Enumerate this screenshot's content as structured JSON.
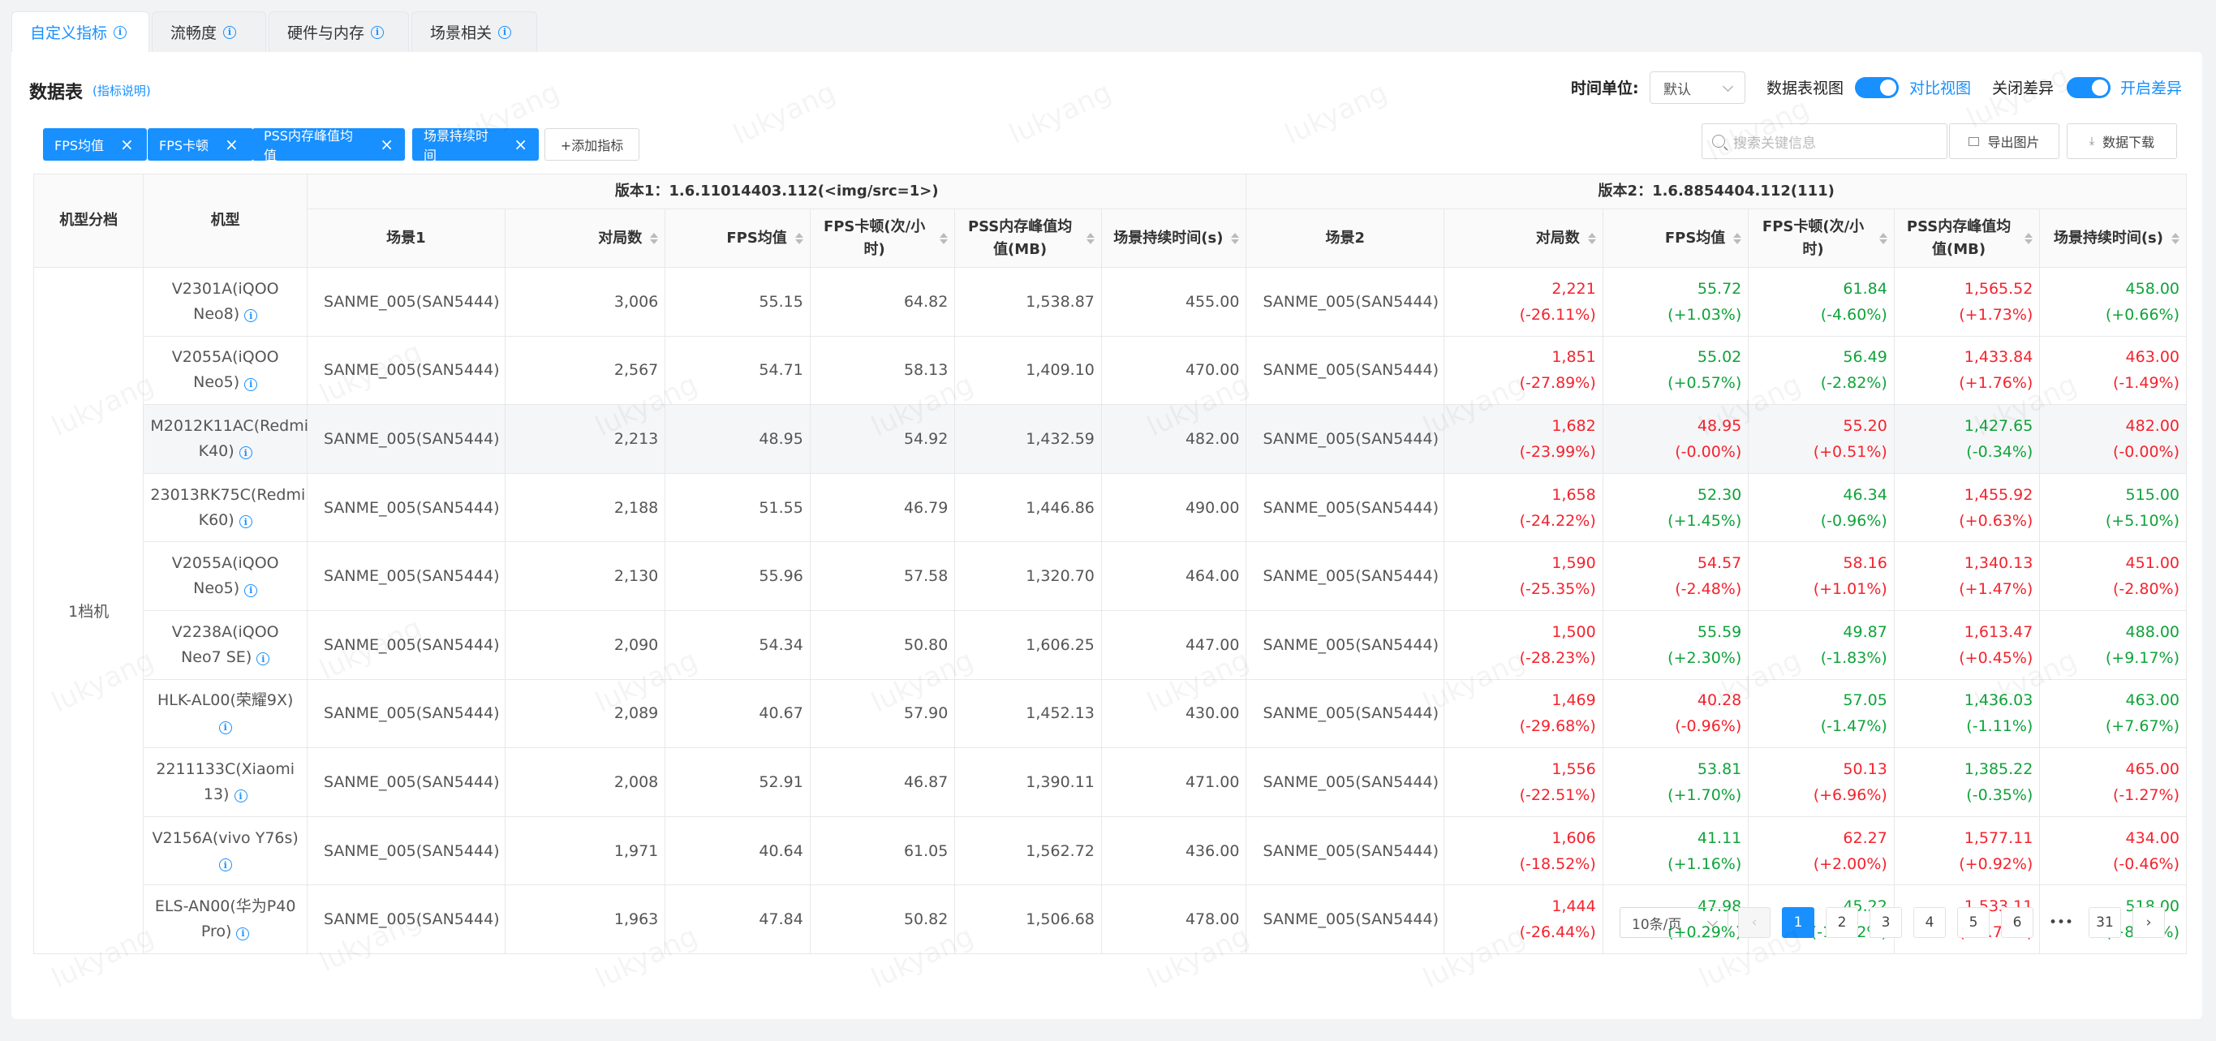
{
  "tabs": [
    {
      "label": "自定义指标",
      "active": true
    },
    {
      "label": "流畅度",
      "active": false
    },
    {
      "label": "硬件与内存",
      "active": false
    },
    {
      "label": "场景相关",
      "active": false
    }
  ],
  "panel": {
    "title": "数据表",
    "help_link": "(指标说明)",
    "time_unit_label": "时间单位:",
    "time_unit_value": "默认",
    "view_label": "数据表视图",
    "view_toggle_on": true,
    "view_link": "对比视图",
    "diff_label": "关闭差异",
    "diff_toggle_on": true,
    "diff_link": "开启差异"
  },
  "metric_chips": [
    "FPS均值",
    "FPS卡顿",
    "PSS内存峰值均值",
    "场景持续时间"
  ],
  "add_metric_label": "+添加指标",
  "search_placeholder": "搜索关键信息",
  "export_image_label": "导出图片",
  "download_label": "数据下载",
  "table": {
    "col_tier": "机型分档",
    "col_model": "机型",
    "version1": "版本1：1.6.11014403.112(<img/src=1>)",
    "version2": "版本2：1.6.8854404.112(111)",
    "v1_cols": [
      "场景1",
      "对局数",
      "FPS均值",
      "FPS卡顿(次/小时)",
      "PSS内存峰值均值(MB)",
      "场景持续时间(s)"
    ],
    "v2_cols": [
      "场景2",
      "对局数",
      "FPS均值",
      "FPS卡顿(次/小时)",
      "PSS内存峰值均值(MB)",
      "场景持续时间(s)"
    ],
    "tier": "1档机",
    "rows": [
      {
        "model": "V2301A(iQOO Neo8)",
        "scene1": "SANME_005(SAN5444)",
        "games1": "3,006",
        "fps1": "55.15",
        "jank1": "64.82",
        "pss1": "1,538.87",
        "dur1": "455.00",
        "scene2": "SANME_005(SAN5444)",
        "games2": "2,221",
        "games2_diff": "(-26.11%)",
        "games2_c": "red",
        "fps2": "55.72",
        "fps2_diff": "(+1.03%)",
        "fps2_c": "green",
        "jank2": "61.84",
        "jank2_diff": "(-4.60%)",
        "jank2_c": "green",
        "pss2": "1,565.52",
        "pss2_diff": "(+1.73%)",
        "pss2_c": "red",
        "dur2": "458.00",
        "dur2_diff": "(+0.66%)",
        "dur2_c": "green"
      },
      {
        "model": "V2055A(iQOO Neo5)",
        "scene1": "SANME_005(SAN5444)",
        "games1": "2,567",
        "fps1": "54.71",
        "jank1": "58.13",
        "pss1": "1,409.10",
        "dur1": "470.00",
        "scene2": "SANME_005(SAN5444)",
        "games2": "1,851",
        "games2_diff": "(-27.89%)",
        "games2_c": "red",
        "fps2": "55.02",
        "fps2_diff": "(+0.57%)",
        "fps2_c": "green",
        "jank2": "56.49",
        "jank2_diff": "(-2.82%)",
        "jank2_c": "green",
        "pss2": "1,433.84",
        "pss2_diff": "(+1.76%)",
        "pss2_c": "red",
        "dur2": "463.00",
        "dur2_diff": "(-1.49%)",
        "dur2_c": "red"
      },
      {
        "model": "M2012K11AC(Redmi K40)",
        "scene1": "SANME_005(SAN5444)",
        "games1": "2,213",
        "fps1": "48.95",
        "jank1": "54.92",
        "pss1": "1,432.59",
        "dur1": "482.00",
        "scene2": "SANME_005(SAN5444)",
        "games2": "1,682",
        "games2_diff": "(-23.99%)",
        "games2_c": "red",
        "fps2": "48.95",
        "fps2_diff": "(-0.00%)",
        "fps2_c": "red",
        "jank2": "55.20",
        "jank2_diff": "(+0.51%)",
        "jank2_c": "red",
        "pss2": "1,427.65",
        "pss2_diff": "(-0.34%)",
        "pss2_c": "green",
        "dur2": "482.00",
        "dur2_diff": "(-0.00%)",
        "dur2_c": "red"
      },
      {
        "model": "23013RK75C(Redmi K60)",
        "scene1": "SANME_005(SAN5444)",
        "games1": "2,188",
        "fps1": "51.55",
        "jank1": "46.79",
        "pss1": "1,446.86",
        "dur1": "490.00",
        "scene2": "SANME_005(SAN5444)",
        "games2": "1,658",
        "games2_diff": "(-24.22%)",
        "games2_c": "red",
        "fps2": "52.30",
        "fps2_diff": "(+1.45%)",
        "fps2_c": "green",
        "jank2": "46.34",
        "jank2_diff": "(-0.96%)",
        "jank2_c": "green",
        "pss2": "1,455.92",
        "pss2_diff": "(+0.63%)",
        "pss2_c": "red",
        "dur2": "515.00",
        "dur2_diff": "(+5.10%)",
        "dur2_c": "green"
      },
      {
        "model": "V2055A(iQOO Neo5)",
        "scene1": "SANME_005(SAN5444)",
        "games1": "2,130",
        "fps1": "55.96",
        "jank1": "57.58",
        "pss1": "1,320.70",
        "dur1": "464.00",
        "scene2": "SANME_005(SAN5444)",
        "games2": "1,590",
        "games2_diff": "(-25.35%)",
        "games2_c": "red",
        "fps2": "54.57",
        "fps2_diff": "(-2.48%)",
        "fps2_c": "red",
        "jank2": "58.16",
        "jank2_diff": "(+1.01%)",
        "jank2_c": "red",
        "pss2": "1,340.13",
        "pss2_diff": "(+1.47%)",
        "pss2_c": "red",
        "dur2": "451.00",
        "dur2_diff": "(-2.80%)",
        "dur2_c": "red"
      },
      {
        "model": "V2238A(iQOO Neo7 SE)",
        "scene1": "SANME_005(SAN5444)",
        "games1": "2,090",
        "fps1": "54.34",
        "jank1": "50.80",
        "pss1": "1,606.25",
        "dur1": "447.00",
        "scene2": "SANME_005(SAN5444)",
        "games2": "1,500",
        "games2_diff": "(-28.23%)",
        "games2_c": "red",
        "fps2": "55.59",
        "fps2_diff": "(+2.30%)",
        "fps2_c": "green",
        "jank2": "49.87",
        "jank2_diff": "(-1.83%)",
        "jank2_c": "green",
        "pss2": "1,613.47",
        "pss2_diff": "(+0.45%)",
        "pss2_c": "red",
        "dur2": "488.00",
        "dur2_diff": "(+9.17%)",
        "dur2_c": "green"
      },
      {
        "model": "HLK-AL00(荣耀9X)",
        "scene1": "SANME_005(SAN5444)",
        "games1": "2,089",
        "fps1": "40.67",
        "jank1": "57.90",
        "pss1": "1,452.13",
        "dur1": "430.00",
        "scene2": "SANME_005(SAN5444)",
        "games2": "1,469",
        "games2_diff": "(-29.68%)",
        "games2_c": "red",
        "fps2": "40.28",
        "fps2_diff": "(-0.96%)",
        "fps2_c": "red",
        "jank2": "57.05",
        "jank2_diff": "(-1.47%)",
        "jank2_c": "green",
        "pss2": "1,436.03",
        "pss2_diff": "(-1.11%)",
        "pss2_c": "green",
        "dur2": "463.00",
        "dur2_diff": "(+7.67%)",
        "dur2_c": "green"
      },
      {
        "model": "2211133C(Xiaomi 13)",
        "scene1": "SANME_005(SAN5444)",
        "games1": "2,008",
        "fps1": "52.91",
        "jank1": "46.87",
        "pss1": "1,390.11",
        "dur1": "471.00",
        "scene2": "SANME_005(SAN5444)",
        "games2": "1,556",
        "games2_diff": "(-22.51%)",
        "games2_c": "red",
        "fps2": "53.81",
        "fps2_diff": "(+1.70%)",
        "fps2_c": "green",
        "jank2": "50.13",
        "jank2_diff": "(+6.96%)",
        "jank2_c": "red",
        "pss2": "1,385.22",
        "pss2_diff": "(-0.35%)",
        "pss2_c": "green",
        "dur2": "465.00",
        "dur2_diff": "(-1.27%)",
        "dur2_c": "red"
      },
      {
        "model": "V2156A(vivo Y76s)",
        "scene1": "SANME_005(SAN5444)",
        "games1": "1,971",
        "fps1": "40.64",
        "jank1": "61.05",
        "pss1": "1,562.72",
        "dur1": "436.00",
        "scene2": "SANME_005(SAN5444)",
        "games2": "1,606",
        "games2_diff": "(-18.52%)",
        "games2_c": "red",
        "fps2": "41.11",
        "fps2_diff": "(+1.16%)",
        "fps2_c": "green",
        "jank2": "62.27",
        "jank2_diff": "(+2.00%)",
        "jank2_c": "red",
        "pss2": "1,577.11",
        "pss2_diff": "(+0.92%)",
        "pss2_c": "red",
        "dur2": "434.00",
        "dur2_diff": "(-0.46%)",
        "dur2_c": "red"
      },
      {
        "model": "ELS-AN00(华为P40 Pro)",
        "scene1": "SANME_005(SAN5444)",
        "games1": "1,963",
        "fps1": "47.84",
        "jank1": "50.82",
        "pss1": "1,506.68",
        "dur1": "478.00",
        "scene2": "SANME_005(SAN5444)",
        "games2": "1,444",
        "games2_diff": "(-26.44%)",
        "games2_c": "red",
        "fps2": "47.98",
        "fps2_diff": "(+0.29%)",
        "fps2_c": "green",
        "jank2": "45.22",
        "jank2_diff": "(-11.02%)",
        "jank2_c": "green",
        "pss2": "1,533.11",
        "pss2_diff": "(+1.75%)",
        "pss2_c": "red",
        "dur2": "518.00",
        "dur2_diff": "(+8.37%)",
        "dur2_c": "green"
      }
    ]
  },
  "pagination": {
    "page_size": "10条/页",
    "pages": [
      "1",
      "2",
      "3",
      "4",
      "5",
      "6"
    ],
    "ellipsis": "•••",
    "last": "31",
    "current": "1"
  },
  "watermark": "lukyang",
  "colors": {
    "accent": "#1890ff",
    "increase_bad": "#f5222d",
    "improve_good": "#0fa33a"
  }
}
